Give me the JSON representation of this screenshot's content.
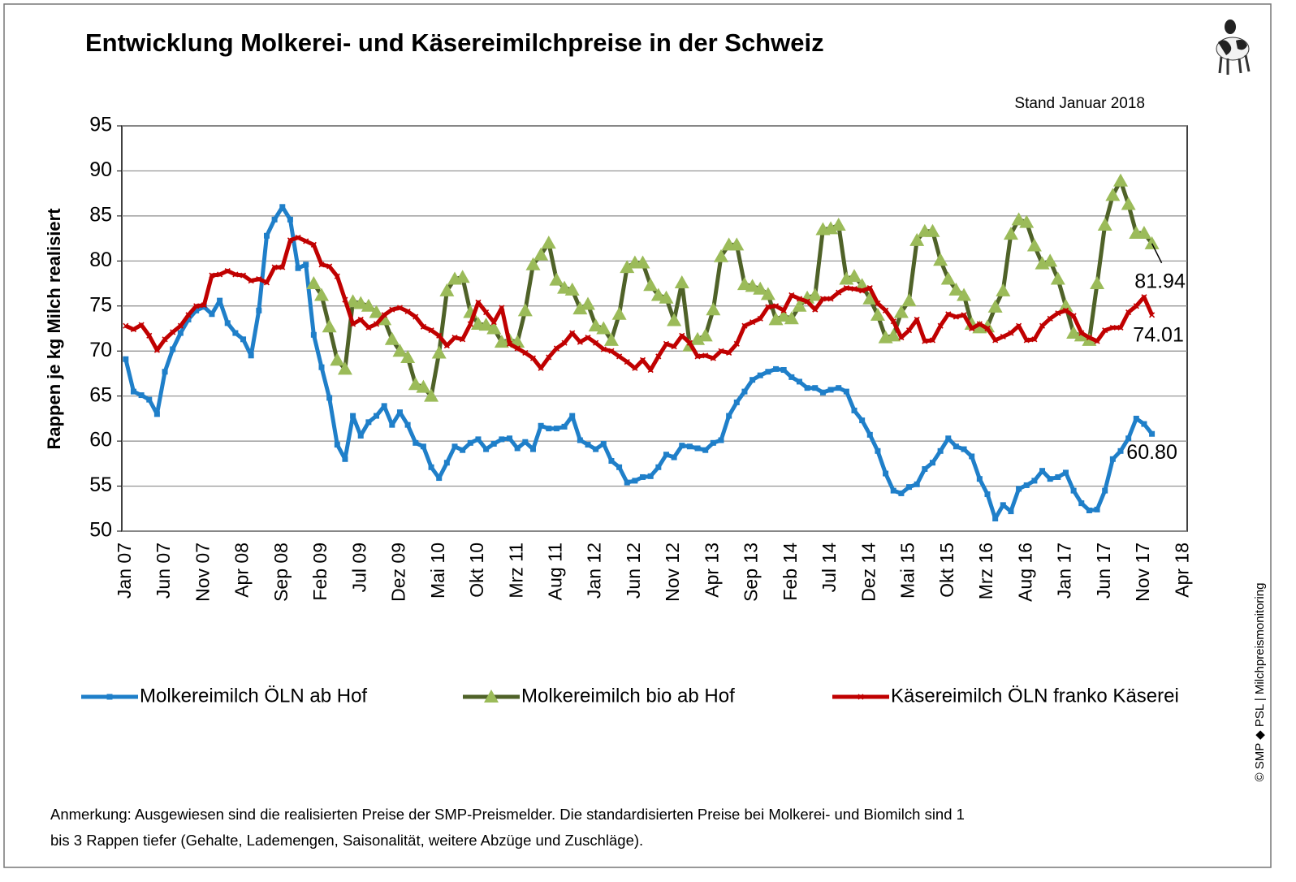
{
  "chart_data": {
    "type": "line",
    "title": "Entwicklung Molkerei- und Käsereimilchpreise in der Schweiz",
    "subtitle": "Stand Januar 2018",
    "y_label": "Rappen je kg Milch realisiert",
    "note": [
      "Anmerkung: Ausgewiesen sind die realisierten Preise der SMP-Preismelder. Die standardisierten Preise bei Molkerei- und Biomilch sind 1",
      "bis 3 Rappen tiefer (Gehalte, Lademengen, Saisonalität, weitere Abzüge und Zuschläge)."
    ],
    "copyright": "© SMP ◆ PSL | Milchpreismonitoring",
    "ylim": [
      50,
      95
    ],
    "yticks": [
      50,
      55,
      60,
      65,
      70,
      75,
      80,
      85,
      90,
      95
    ],
    "grid": true,
    "legend": "bottom",
    "categories": [
      "Jan 07",
      null,
      null,
      null,
      null,
      "Jun 07",
      null,
      null,
      null,
      null,
      "Nov 07",
      null,
      null,
      null,
      null,
      "Apr 08",
      null,
      null,
      null,
      null,
      "Sep 08",
      null,
      null,
      null,
      null,
      "Feb 09",
      null,
      null,
      null,
      null,
      "Jul 09",
      null,
      null,
      null,
      null,
      "Dez 09",
      null,
      null,
      null,
      null,
      "Mai 10",
      null,
      null,
      null,
      null,
      "Okt 10",
      null,
      null,
      null,
      null,
      "Mrz 11",
      null,
      null,
      null,
      null,
      "Aug 11",
      null,
      null,
      null,
      null,
      "Jan 12",
      null,
      null,
      null,
      null,
      "Jun 12",
      null,
      null,
      null,
      null,
      "Nov 12",
      null,
      null,
      null,
      null,
      "Apr 13",
      null,
      null,
      null,
      null,
      "Sep 13",
      null,
      null,
      null,
      null,
      "Feb 14",
      null,
      null,
      null,
      null,
      "Jul 14",
      null,
      null,
      null,
      null,
      "Dez 14",
      null,
      null,
      null,
      null,
      "Mai 15",
      null,
      null,
      null,
      null,
      "Okt 15",
      null,
      null,
      null,
      null,
      "Mrz 16",
      null,
      null,
      null,
      null,
      "Aug 16",
      null,
      null,
      null,
      null,
      "Jan 17",
      null,
      null,
      null,
      null,
      "Jun 17",
      null,
      null,
      null,
      null,
      "Nov 17",
      null,
      null,
      null,
      null,
      "Apr 18"
    ],
    "series": [
      {
        "name": "Molkereimilch ÖLN ab Hof",
        "color": "#1f7fc9",
        "marker": "square",
        "marker_color": "#1f7fc9",
        "values": [
          69.1,
          65.5,
          65.1,
          64.6,
          63.0,
          67.7,
          70.2,
          72.0,
          73.5,
          74.5,
          74.9,
          74.1,
          75.6,
          73.1,
          72.0,
          71.3,
          69.5,
          74.5,
          82.8,
          84.6,
          86.0,
          84.6,
          79.2,
          79.6,
          71.8,
          68.2,
          64.8,
          59.6,
          58.0,
          62.8,
          60.6,
          62.1,
          62.8,
          63.9,
          61.8,
          63.2,
          61.8,
          59.8,
          59.4,
          57.1,
          55.9,
          57.6,
          59.4,
          59.0,
          59.8,
          60.2,
          59.1,
          59.7,
          60.2,
          60.3,
          59.2,
          59.9,
          59.1,
          61.7,
          61.4,
          61.4,
          61.6,
          62.8,
          60.1,
          59.6,
          59.1,
          59.7,
          57.8,
          57.1,
          55.4,
          55.6,
          56.0,
          56.1,
          57.1,
          58.5,
          58.2,
          59.5,
          59.4,
          59.2,
          59.0,
          59.8,
          60.1,
          62.8,
          64.3,
          65.5,
          66.8,
          67.3,
          67.7,
          68.0,
          67.9,
          67.1,
          66.6,
          65.9,
          65.9,
          65.4,
          65.7,
          65.9,
          65.5,
          63.4,
          62.3,
          60.7,
          58.9,
          56.4,
          54.5,
          54.2,
          54.9,
          55.2,
          56.9,
          57.6,
          58.9,
          60.3,
          59.4,
          59.1,
          58.3,
          55.8,
          54.1,
          51.4,
          52.9,
          52.2,
          54.7,
          55.1,
          55.6,
          56.7,
          55.8,
          56.0,
          56.5,
          54.5,
          53.1,
          52.3,
          52.4,
          54.5,
          58.0,
          58.9,
          60.3,
          62.5,
          61.9,
          60.8,
          null,
          null,
          null,
          null
        ],
        "value_labels": [
          null,
          null,
          null,
          null,
          null,
          null,
          null,
          null,
          null,
          null,
          null,
          null,
          null,
          null,
          null,
          null,
          null,
          null,
          null,
          null,
          null,
          null,
          null,
          null,
          null,
          null,
          null,
          null,
          null,
          null,
          null,
          null,
          null,
          null,
          null,
          null,
          null,
          null,
          null,
          null,
          null,
          null,
          null,
          null,
          null,
          null,
          null,
          null,
          null,
          null,
          null,
          null,
          null,
          null,
          null,
          null,
          null,
          null,
          null,
          null,
          null,
          null,
          null,
          null,
          null,
          null,
          null,
          null,
          null,
          null,
          null,
          null,
          null,
          null,
          null,
          null,
          null,
          null,
          null,
          null,
          null,
          null,
          null,
          null,
          null,
          null,
          null,
          null,
          null,
          null,
          null,
          null,
          null,
          null,
          null,
          null,
          null,
          null,
          null,
          null,
          null,
          null,
          null,
          null,
          null,
          null,
          null,
          null,
          null,
          null,
          null,
          null,
          null,
          null,
          null,
          null,
          null,
          null,
          null,
          null,
          null,
          null,
          null,
          null,
          null,
          null,
          null,
          null,
          null,
          null,
          null,
          "60.80",
          null,
          null,
          null,
          null
        ]
      },
      {
        "name": "Molkereimilch bio ab Hof",
        "color": "#4f6228",
        "marker": "triangle",
        "marker_color": "#9bbb59",
        "values": [
          null,
          null,
          null,
          null,
          null,
          null,
          null,
          null,
          null,
          null,
          null,
          null,
          null,
          null,
          null,
          null,
          null,
          null,
          null,
          null,
          null,
          null,
          null,
          null,
          77.5,
          76.2,
          72.7,
          69.0,
          68.0,
          75.5,
          75.3,
          75.0,
          74.3,
          73.5,
          71.3,
          70.0,
          69.3,
          66.3,
          66.0,
          65.0,
          69.8,
          76.7,
          78.0,
          78.2,
          74.3,
          73.0,
          72.9,
          72.5,
          71.0,
          71.2,
          71.0,
          74.5,
          79.6,
          80.7,
          82.0,
          77.9,
          77.0,
          76.8,
          74.7,
          75.2,
          72.8,
          72.5,
          71.2,
          74.1,
          79.3,
          79.8,
          79.8,
          77.3,
          76.2,
          75.9,
          73.4,
          77.6,
          70.6,
          71.3,
          71.7,
          74.6,
          80.5,
          81.8,
          81.8,
          77.4,
          77.2,
          76.9,
          76.3,
          73.5,
          73.9,
          73.6,
          75.0,
          75.9,
          76.2,
          83.5,
          83.6,
          84.0,
          78.0,
          78.3,
          77.3,
          75.8,
          74.0,
          71.5,
          71.7,
          74.3,
          75.6,
          82.3,
          83.3,
          83.3,
          80.1,
          78.0,
          76.8,
          76.2,
          73.0,
          72.6,
          72.7,
          74.9,
          76.7,
          83.0,
          84.6,
          84.3,
          81.7,
          79.7,
          80.0,
          78.0,
          75.0,
          72.0,
          71.7,
          71.2,
          77.5,
          84.0,
          87.3,
          88.9,
          86.3,
          83.1,
          83.1,
          81.94,
          null,
          null,
          null,
          null
        ]
      },
      {
        "name": "Käsereimilch ÖLN franko Käserei",
        "color": "#c00000",
        "marker": "x",
        "marker_color": "#c00000",
        "values": [
          72.8,
          72.4,
          72.9,
          71.7,
          70.1,
          71.3,
          72.1,
          72.8,
          74.0,
          75.0,
          75.1,
          78.4,
          78.5,
          78.9,
          78.5,
          78.4,
          77.8,
          78.0,
          77.6,
          79.3,
          79.3,
          82.3,
          82.6,
          82.2,
          81.8,
          79.6,
          79.4,
          78.3,
          75.7,
          73.0,
          73.5,
          72.6,
          73.0,
          74.0,
          74.6,
          74.8,
          74.4,
          73.8,
          72.7,
          72.3,
          71.7,
          70.6,
          71.5,
          71.3,
          73.0,
          75.4,
          74.3,
          73.2,
          74.8,
          70.8,
          70.3,
          69.8,
          69.2,
          68.1,
          69.3,
          70.3,
          70.9,
          72.0,
          71.0,
          71.5,
          70.9,
          70.2,
          70.0,
          69.4,
          68.8,
          68.1,
          69.0,
          67.9,
          69.4,
          70.8,
          70.5,
          71.7,
          70.9,
          69.4,
          69.5,
          69.2,
          70.0,
          69.8,
          70.8,
          72.8,
          73.2,
          73.6,
          74.9,
          75.0,
          74.5,
          76.2,
          75.8,
          75.5,
          74.6,
          75.8,
          75.8,
          76.5,
          77.0,
          76.9,
          76.7,
          77.0,
          75.3,
          74.5,
          73.3,
          71.5,
          72.3,
          73.5,
          71.1,
          71.2,
          72.8,
          74.1,
          73.8,
          74.0,
          72.5,
          73.0,
          72.5,
          71.2,
          71.6,
          72.0,
          72.8,
          71.2,
          71.3,
          72.8,
          73.6,
          74.2,
          74.5,
          73.9,
          72.0,
          71.5,
          71.1,
          72.3,
          72.6,
          72.6,
          74.3,
          75.0,
          76.0,
          74.01,
          null,
          null,
          null,
          null
        ]
      }
    ]
  }
}
